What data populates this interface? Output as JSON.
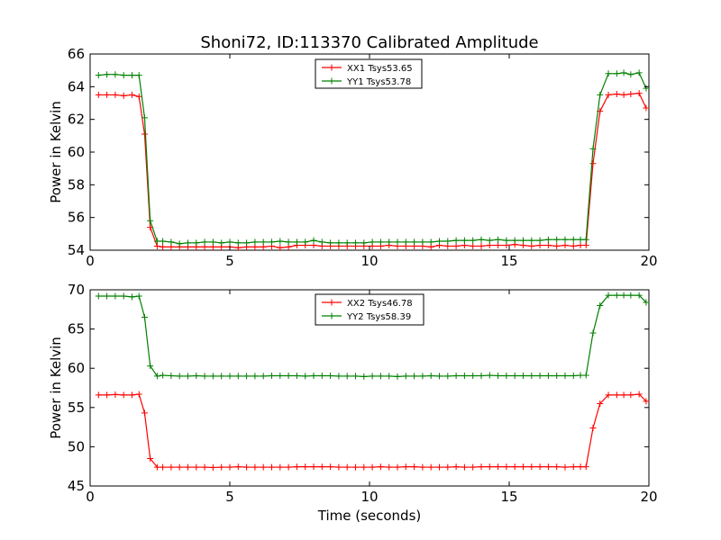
{
  "chart_data": [
    {
      "type": "line",
      "title": "Shoni72, ID:113370 Calibrated Amplitude",
      "xlabel": "",
      "ylabel": "Power in Kelvin",
      "xlim": [
        0,
        20
      ],
      "ylim": [
        54,
        66
      ],
      "xticks": [
        "0",
        "5",
        "10",
        "15",
        "20"
      ],
      "yticks": [
        "54",
        "56",
        "58",
        "60",
        "62",
        "64",
        "66"
      ],
      "legend_position": "top-center",
      "grid": false,
      "x": [
        0.3,
        0.6,
        0.9,
        1.2,
        1.5,
        1.75,
        1.95,
        2.15,
        2.4,
        2.6,
        2.9,
        3.2,
        3.5,
        3.8,
        4.1,
        4.4,
        4.7,
        5.0,
        5.3,
        5.6,
        5.9,
        6.2,
        6.5,
        6.8,
        7.1,
        7.4,
        7.7,
        8.0,
        8.3,
        8.6,
        8.9,
        9.2,
        9.5,
        9.8,
        10.1,
        10.4,
        10.7,
        11.0,
        11.3,
        11.6,
        11.9,
        12.2,
        12.5,
        12.8,
        13.1,
        13.4,
        13.7,
        14.0,
        14.3,
        14.6,
        14.9,
        15.2,
        15.5,
        15.8,
        16.1,
        16.4,
        16.7,
        17.0,
        17.3,
        17.55,
        17.75,
        18.0,
        18.25,
        18.55,
        18.85,
        19.1,
        19.35,
        19.65,
        19.9
      ],
      "series": [
        {
          "name": "XX1 Tsys53.65",
          "color": "#ff0000",
          "values": [
            63.5,
            63.5,
            63.5,
            63.45,
            63.5,
            63.4,
            61.1,
            55.4,
            54.25,
            54.2,
            54.2,
            54.2,
            54.2,
            54.2,
            54.2,
            54.2,
            54.2,
            54.2,
            54.15,
            54.2,
            54.2,
            54.2,
            54.25,
            54.15,
            54.2,
            54.3,
            54.3,
            54.3,
            54.25,
            54.25,
            54.25,
            54.25,
            54.25,
            54.25,
            54.25,
            54.25,
            54.3,
            54.25,
            54.25,
            54.25,
            54.25,
            54.2,
            54.3,
            54.25,
            54.25,
            54.3,
            54.25,
            54.25,
            54.3,
            54.3,
            54.3,
            54.35,
            54.3,
            54.25,
            54.3,
            54.3,
            54.25,
            54.3,
            54.25,
            54.3,
            54.3,
            59.3,
            62.5,
            63.5,
            63.55,
            63.5,
            63.55,
            63.6,
            62.7
          ]
        },
        {
          "name": "YY1 Tsys53.78",
          "color": "#008000",
          "values": [
            64.7,
            64.75,
            64.75,
            64.7,
            64.7,
            64.7,
            62.1,
            55.8,
            54.55,
            54.55,
            54.5,
            54.4,
            54.45,
            54.45,
            54.5,
            54.5,
            54.45,
            54.5,
            54.45,
            54.45,
            54.5,
            54.5,
            54.5,
            54.55,
            54.5,
            54.5,
            54.5,
            54.6,
            54.5,
            54.45,
            54.45,
            54.45,
            54.45,
            54.45,
            54.5,
            54.5,
            54.5,
            54.5,
            54.5,
            54.5,
            54.5,
            54.5,
            54.55,
            54.55,
            54.6,
            54.6,
            54.6,
            54.65,
            54.6,
            54.65,
            54.6,
            54.6,
            54.6,
            54.6,
            54.6,
            54.65,
            54.65,
            54.65,
            54.65,
            54.65,
            54.65,
            60.2,
            63.5,
            64.8,
            64.8,
            64.85,
            64.75,
            64.85,
            63.9
          ]
        }
      ]
    },
    {
      "type": "line",
      "title": "",
      "xlabel": "Time (seconds)",
      "ylabel": "Power in Kelvin",
      "xlim": [
        0,
        20
      ],
      "ylim": [
        45,
        70
      ],
      "xticks": [
        "0",
        "5",
        "10",
        "15",
        "20"
      ],
      "yticks": [
        "45",
        "50",
        "55",
        "60",
        "65",
        "70"
      ],
      "legend_position": "top-center",
      "grid": false,
      "x": [
        0.3,
        0.6,
        0.9,
        1.2,
        1.5,
        1.75,
        1.95,
        2.15,
        2.4,
        2.6,
        2.9,
        3.2,
        3.5,
        3.8,
        4.1,
        4.4,
        4.7,
        5.0,
        5.3,
        5.6,
        5.9,
        6.2,
        6.5,
        6.8,
        7.1,
        7.4,
        7.7,
        8.0,
        8.3,
        8.6,
        8.9,
        9.2,
        9.5,
        9.8,
        10.1,
        10.4,
        10.7,
        11.0,
        11.3,
        11.6,
        11.9,
        12.2,
        12.5,
        12.8,
        13.1,
        13.4,
        13.7,
        14.0,
        14.3,
        14.6,
        14.9,
        15.2,
        15.5,
        15.8,
        16.1,
        16.4,
        16.7,
        17.0,
        17.3,
        17.55,
        17.75,
        18.0,
        18.25,
        18.55,
        18.85,
        19.1,
        19.35,
        19.65,
        19.9
      ],
      "series": [
        {
          "name": "XX2 Tsys46.78",
          "color": "#ff0000",
          "values": [
            56.6,
            56.6,
            56.65,
            56.6,
            56.6,
            56.7,
            54.3,
            48.5,
            47.4,
            47.4,
            47.4,
            47.4,
            47.4,
            47.4,
            47.4,
            47.35,
            47.4,
            47.4,
            47.45,
            47.4,
            47.4,
            47.4,
            47.4,
            47.4,
            47.4,
            47.45,
            47.45,
            47.45,
            47.45,
            47.45,
            47.4,
            47.4,
            47.4,
            47.4,
            47.4,
            47.45,
            47.4,
            47.4,
            47.45,
            47.45,
            47.4,
            47.4,
            47.4,
            47.4,
            47.45,
            47.4,
            47.4,
            47.45,
            47.45,
            47.45,
            47.45,
            47.45,
            47.45,
            47.45,
            47.45,
            47.45,
            47.45,
            47.4,
            47.45,
            47.45,
            47.45,
            52.4,
            55.5,
            56.6,
            56.6,
            56.6,
            56.6,
            56.7,
            55.8
          ]
        },
        {
          "name": "YY2 Tsys58.39",
          "color": "#008000",
          "values": [
            69.2,
            69.2,
            69.2,
            69.2,
            69.1,
            69.2,
            66.5,
            60.3,
            59.0,
            59.1,
            59.05,
            59.0,
            59.0,
            59.05,
            59.0,
            59.0,
            59.0,
            59.0,
            59.0,
            59.0,
            59.0,
            59.0,
            59.05,
            59.05,
            59.05,
            59.05,
            59.0,
            59.05,
            59.05,
            59.05,
            59.0,
            59.0,
            59.0,
            58.95,
            59.0,
            59.0,
            59.0,
            58.95,
            59.0,
            59.0,
            59.0,
            59.05,
            59.0,
            59.0,
            59.05,
            59.05,
            59.05,
            59.05,
            59.1,
            59.05,
            59.05,
            59.05,
            59.05,
            59.05,
            59.05,
            59.05,
            59.05,
            59.05,
            59.05,
            59.1,
            59.1,
            64.5,
            68.0,
            69.3,
            69.3,
            69.3,
            69.3,
            69.3,
            68.4
          ]
        }
      ]
    }
  ]
}
